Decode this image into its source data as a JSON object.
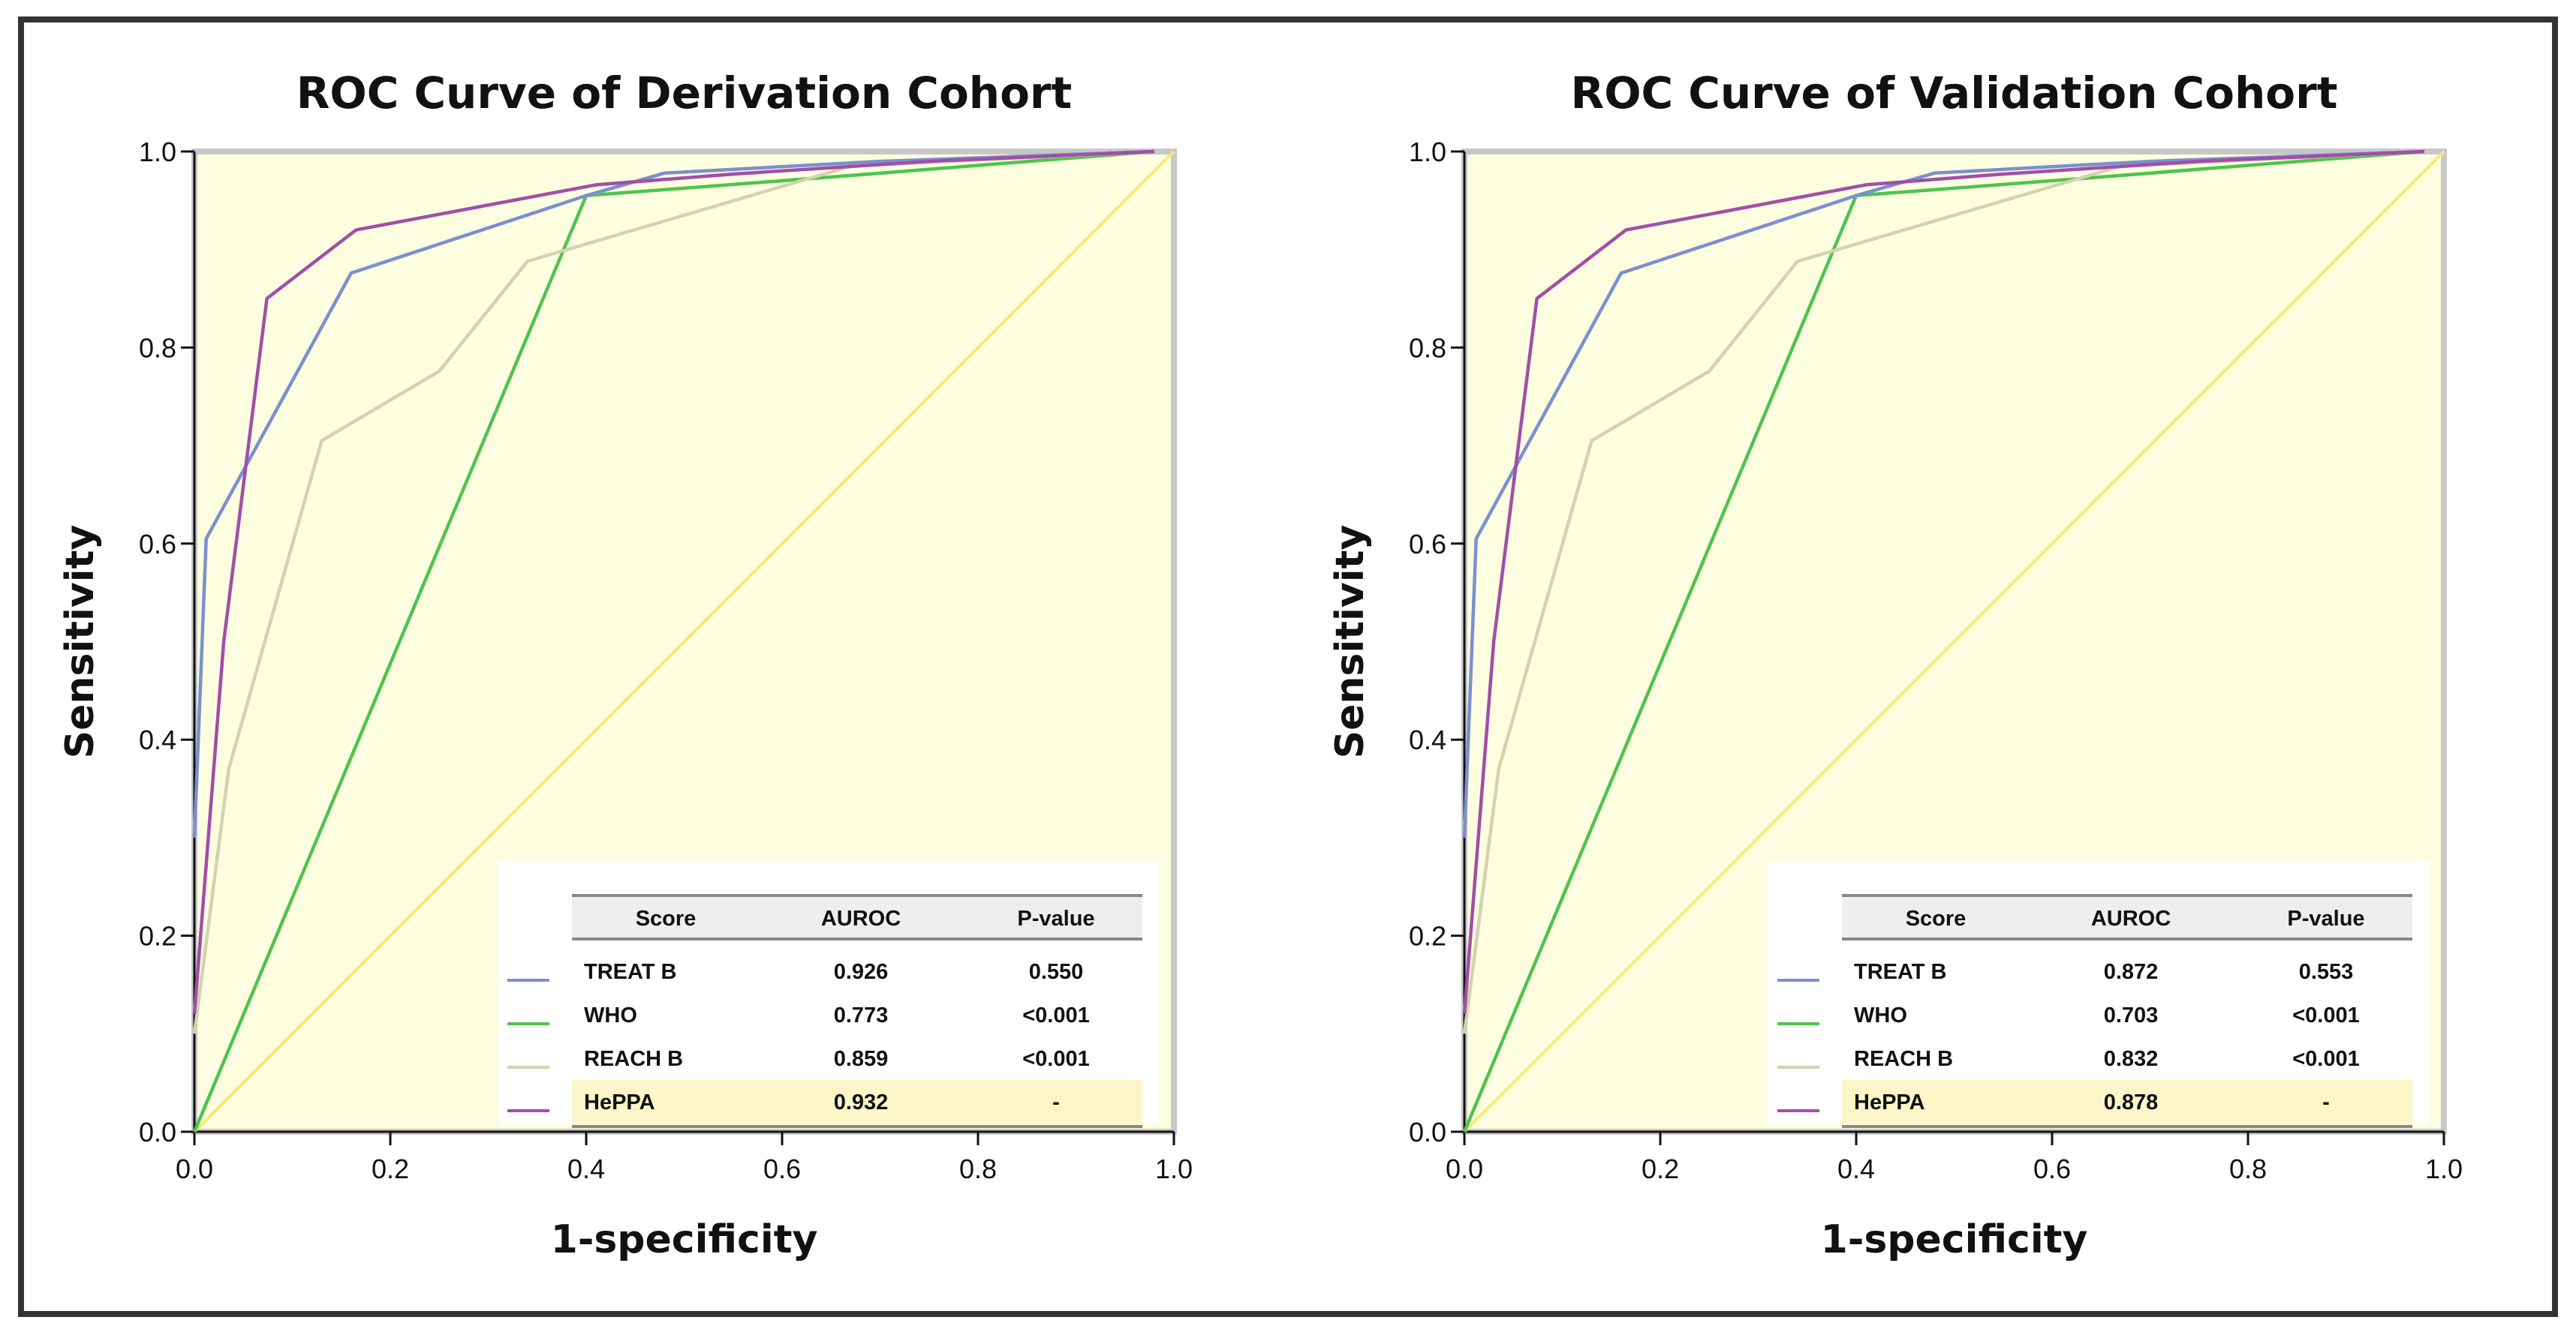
{
  "colors": {
    "background": "#fdfde0",
    "plot_border": "#c8c8c8",
    "treat_b": "#7b8fd0",
    "who": "#4ec44e",
    "reach_b": "#d3d3b0",
    "heppa": "#a24ea8",
    "reference": "#f3eb72",
    "legend_highlight": "#fcf5c8",
    "legend_header_bg": "#eeeeee"
  },
  "chart_data": [
    {
      "type": "line",
      "title": "ROC Curve of Derivation Cohort",
      "xlabel": "1-specificity",
      "ylabel": "Sensitivity",
      "xlim": [
        0,
        1
      ],
      "ylim": [
        0,
        1
      ],
      "xticks": [
        "0.0",
        "0.2",
        "0.4",
        "0.6",
        "0.8",
        "1.0"
      ],
      "yticks": [
        "0.0",
        "0.2",
        "0.4",
        "0.6",
        "0.8",
        "1.0"
      ],
      "legend_placement": "bottom-right",
      "legend_headers": [
        "Score",
        "AUROC",
        "P-value"
      ],
      "series": [
        {
          "name": "TREAT B",
          "auroc": "0.926",
          "pvalue": "0.550",
          "color_key": "treat_b",
          "points": [
            [
              0,
              0.3
            ],
            [
              0.012,
              0.605
            ],
            [
              0.16,
              0.876
            ],
            [
              0.4,
              0.955
            ],
            [
              0.48,
              0.978
            ],
            [
              0.7,
              0.99
            ],
            [
              0.98,
              1.0
            ]
          ]
        },
        {
          "name": "WHO",
          "auroc": "0.773",
          "pvalue": "<0.001",
          "color_key": "who",
          "points": [
            [
              0,
              0.0
            ],
            [
              0.4,
              0.955
            ],
            [
              0.65,
              0.974
            ],
            [
              0.98,
              1.0
            ]
          ]
        },
        {
          "name": "REACH B",
          "auroc": "0.859",
          "pvalue": "<0.001",
          "color_key": "reach_b",
          "points": [
            [
              0,
              0.1
            ],
            [
              0.035,
              0.37
            ],
            [
              0.13,
              0.705
            ],
            [
              0.25,
              0.776
            ],
            [
              0.34,
              0.888
            ],
            [
              0.5,
              0.935
            ],
            [
              0.67,
              0.985
            ],
            [
              0.98,
              1.0
            ]
          ]
        },
        {
          "name": "HePPA",
          "auroc": "0.932",
          "pvalue": "-",
          "color_key": "heppa",
          "highlight": true,
          "points": [
            [
              0,
              0.12
            ],
            [
              0.03,
              0.5
            ],
            [
              0.074,
              0.85
            ],
            [
              0.165,
              0.92
            ],
            [
              0.41,
              0.966
            ],
            [
              0.55,
              0.977
            ],
            [
              0.75,
              0.99
            ],
            [
              0.98,
              1.0
            ]
          ]
        }
      ]
    },
    {
      "type": "line",
      "title": "ROC Curve of Validation Cohort",
      "xlabel": "1-specificity",
      "ylabel": "Sensitivity",
      "xlim": [
        0,
        1
      ],
      "ylim": [
        0,
        1
      ],
      "xticks": [
        "0.0",
        "0.2",
        "0.4",
        "0.6",
        "0.8",
        "1.0"
      ],
      "yticks": [
        "0.0",
        "0.2",
        "0.4",
        "0.6",
        "0.8",
        "1.0"
      ],
      "legend_placement": "bottom-right",
      "legend_headers": [
        "Score",
        "AUROC",
        "P-value"
      ],
      "series": [
        {
          "name": "TREAT B",
          "auroc": "0.872",
          "pvalue": "0.553",
          "color_key": "treat_b",
          "points": [
            [
              0,
              0.3
            ],
            [
              0.012,
              0.605
            ],
            [
              0.16,
              0.876
            ],
            [
              0.4,
              0.955
            ],
            [
              0.48,
              0.978
            ],
            [
              0.7,
              0.99
            ],
            [
              0.98,
              1.0
            ]
          ]
        },
        {
          "name": "WHO",
          "auroc": "0.703",
          "pvalue": "<0.001",
          "color_key": "who",
          "points": [
            [
              0,
              0.0
            ],
            [
              0.4,
              0.955
            ],
            [
              0.65,
              0.974
            ],
            [
              0.98,
              1.0
            ]
          ]
        },
        {
          "name": "REACH B",
          "auroc": "0.832",
          "pvalue": "<0.001",
          "color_key": "reach_b",
          "points": [
            [
              0,
              0.1
            ],
            [
              0.035,
              0.37
            ],
            [
              0.13,
              0.705
            ],
            [
              0.25,
              0.776
            ],
            [
              0.34,
              0.888
            ],
            [
              0.5,
              0.935
            ],
            [
              0.67,
              0.985
            ],
            [
              0.98,
              1.0
            ]
          ]
        },
        {
          "name": "HePPA",
          "auroc": "0.878",
          "pvalue": "-",
          "color_key": "heppa",
          "highlight": true,
          "points": [
            [
              0,
              0.12
            ],
            [
              0.03,
              0.5
            ],
            [
              0.074,
              0.85
            ],
            [
              0.165,
              0.92
            ],
            [
              0.41,
              0.966
            ],
            [
              0.55,
              0.977
            ],
            [
              0.75,
              0.99
            ],
            [
              0.98,
              1.0
            ]
          ]
        }
      ]
    }
  ]
}
